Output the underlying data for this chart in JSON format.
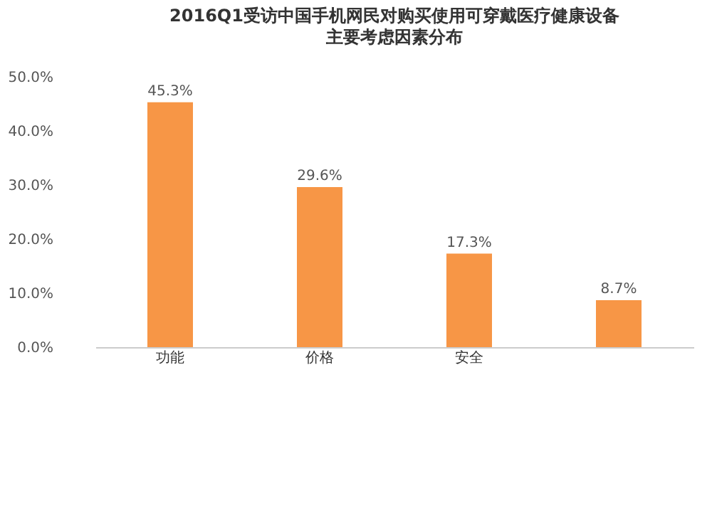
{
  "chart_data": {
    "type": "bar",
    "title": "2016Q1受访中国手机网民对购买使用可穿戴医疗健康设备",
    "subtitle": "主要考虑因素分布",
    "categories": [
      "功能",
      "价格",
      "安全",
      null
    ],
    "values": [
      45.3,
      29.6,
      17.3,
      8.7
    ],
    "value_labels": [
      "45.3%",
      "29.6%",
      "17.3%",
      "8.7%"
    ],
    "color": "#f79646",
    "ylim": [
      0,
      50
    ],
    "yticks": [
      {
        "value": 0,
        "label": "0.0%"
      },
      {
        "value": 10,
        "label": "10.0%"
      },
      {
        "value": 20,
        "label": "20.0%"
      },
      {
        "value": 30,
        "label": "30.0%"
      },
      {
        "value": 40,
        "label": "40.0%"
      },
      {
        "value": 50,
        "label": "50.0%"
      }
    ],
    "grid": false
  }
}
